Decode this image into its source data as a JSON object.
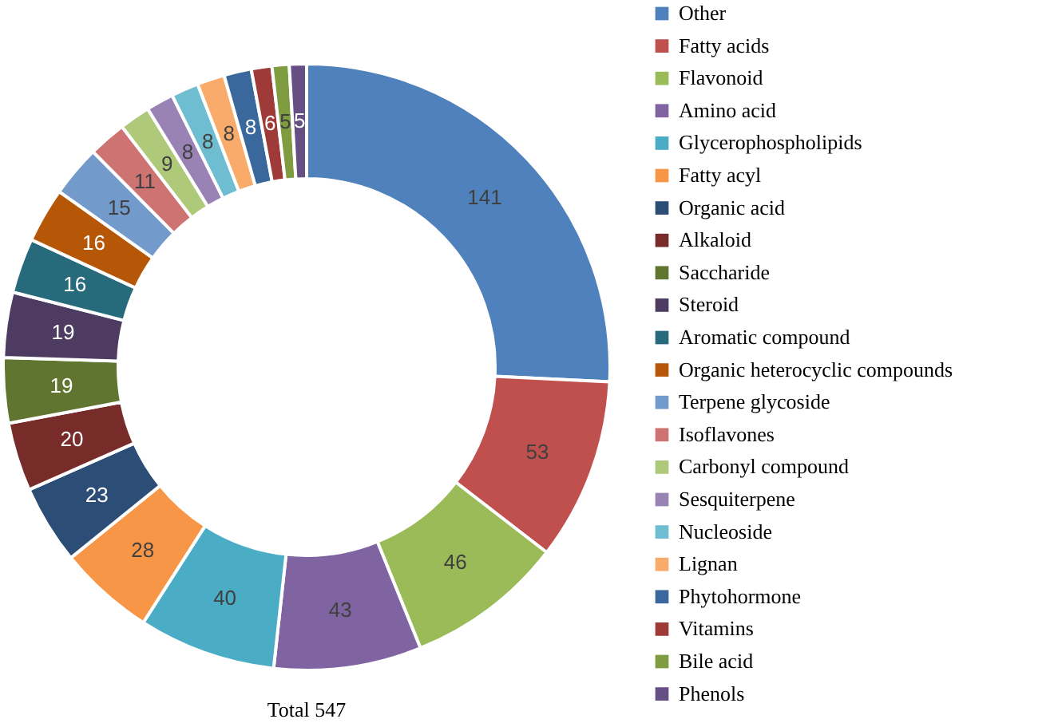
{
  "chart_data": {
    "type": "donut",
    "categories": [
      "Other",
      "Fatty acids",
      "Flavonoid",
      "Amino acid",
      "Glycerophospholipids",
      "Fatty acyl",
      "Organic acid",
      "Alkaloid",
      "Saccharide",
      "Steroid",
      "Aromatic compound",
      "Organic heterocyclic compounds",
      "Terpene glycoside",
      "Isoflavones",
      "Carbonyl compound",
      "Sesquiterpene",
      "Nucleoside",
      "Lignan",
      "Phytohormone",
      "Vitamins",
      "Bile acid",
      "Phenols"
    ],
    "values": [
      141,
      53,
      46,
      43,
      40,
      28,
      23,
      20,
      19,
      19,
      16,
      16,
      15,
      11,
      9,
      8,
      8,
      8,
      8,
      6,
      5,
      5
    ],
    "colors": [
      "#4f81bd",
      "#c0504d",
      "#9bbb59",
      "#8064a2",
      "#4bacc6",
      "#f79646",
      "#2c4d75",
      "#772c2a",
      "#5f7530",
      "#4d3b62",
      "#276a7c",
      "#b65708",
      "#729aca",
      "#cd7371",
      "#afc97a",
      "#9983b5",
      "#6fbdd1",
      "#f9ab6b",
      "#3a679c",
      "#9e3b38",
      "#7f9c40",
      "#664f83"
    ],
    "data_labels": true,
    "legend": "right",
    "annotations": [
      "Total 547"
    ]
  }
}
